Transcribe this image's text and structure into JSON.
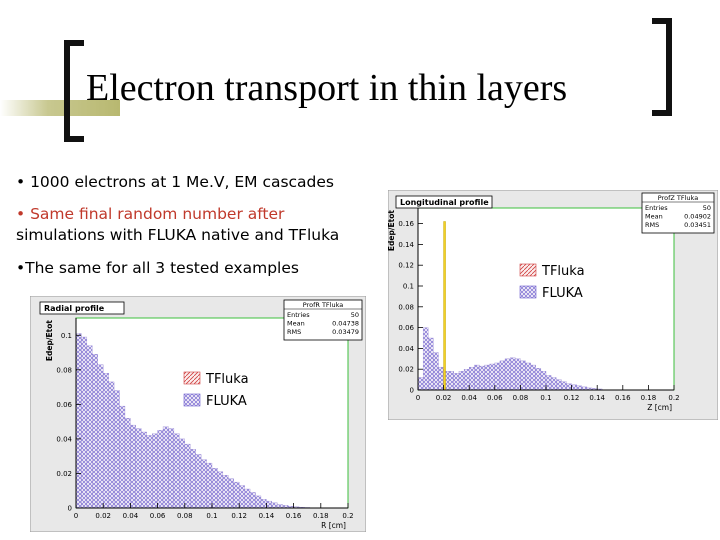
{
  "slide": {
    "title": "Electron transport in thin layers",
    "bullets": [
      "• 1000 electrons at 1 Me.V, EM cascades",
      "• Same final random number after",
      "simulations with FLUKA native and TFluka",
      "•The same for all 3 tested examples"
    ],
    "colors": {
      "accent_bar": "#b8b870",
      "bracket": "#111111",
      "highlight_text": "#c0392b"
    }
  },
  "chart_data": [
    {
      "type": "bar",
      "panel_label": "Radial profile",
      "stats_title": "ProfR TFluka",
      "stats": [
        [
          "Entries",
          "50"
        ],
        [
          "Mean",
          "0.04738"
        ],
        [
          "RMS",
          "0.03479"
        ]
      ],
      "ylabel": "Edep/Etot",
      "xlabel": "R [cm]",
      "xlim": [
        0,
        0.2
      ],
      "ylim": [
        0,
        0.11
      ],
      "xticks": [
        "0",
        "0.02",
        "0.04",
        "0.06",
        "0.08",
        "0.1",
        "0.12",
        "0.14",
        "0.16",
        "0.18",
        "0.2"
      ],
      "yticks": [
        [
          "0",
          "0"
        ],
        [
          "0.02",
          "0.02"
        ],
        [
          "0.04",
          "0.04"
        ],
        [
          "0.06",
          "0.06"
        ],
        [
          "0.08",
          "0.08"
        ],
        [
          "0.1",
          "0.1"
        ]
      ],
      "legend": [
        "TFluka",
        "FLUKA"
      ],
      "bin_width": 0.004,
      "values": [
        0.101,
        0.099,
        0.094,
        0.089,
        0.083,
        0.078,
        0.073,
        0.068,
        0.059,
        0.052,
        0.048,
        0.046,
        0.044,
        0.042,
        0.043,
        0.045,
        0.047,
        0.046,
        0.043,
        0.04,
        0.037,
        0.034,
        0.031,
        0.028,
        0.026,
        0.023,
        0.021,
        0.019,
        0.017,
        0.015,
        0.013,
        0.011,
        0.009,
        0.007,
        0.005,
        0.004,
        0.003,
        0.002,
        0.0015,
        0.001,
        0.0007,
        0.0005,
        0.0003,
        0.0002,
        0.0001,
        0.0001,
        0,
        0,
        0,
        0
      ]
    },
    {
      "type": "bar",
      "panel_label": "Longitudinal profile",
      "stats_title": "ProfZ TFluka",
      "stats": [
        [
          "Entries",
          "50"
        ],
        [
          "Mean",
          "0.04902"
        ],
        [
          "RMS",
          "0.03451"
        ]
      ],
      "ylabel": "Edep/Etot",
      "xlabel": "Z [cm]",
      "xlim": [
        0,
        0.2
      ],
      "ylim": [
        0,
        0.175
      ],
      "xticks": [
        "0",
        "0.02",
        "0.04",
        "0.06",
        "0.08",
        "0.1",
        "0.12",
        "0.14",
        "0.16",
        "0.18",
        "0.2"
      ],
      "yticks": [
        [
          "0",
          "0"
        ],
        [
          "0.02",
          "0.02"
        ],
        [
          "0.04",
          "0.04"
        ],
        [
          "0.06",
          "0.06"
        ],
        [
          "0.08",
          "0.08"
        ],
        [
          "0.1",
          "0.1"
        ],
        [
          "0.12",
          "0.12"
        ],
        [
          "0.14",
          "0.14"
        ],
        [
          "0.16",
          "0.16"
        ]
      ],
      "legend": [
        "TFluka",
        "FLUKA"
      ],
      "bin_width": 0.004,
      "values": [
        0.012,
        0.06,
        0.05,
        0.036,
        0.022,
        0.018,
        0.018,
        0.016,
        0.018,
        0.02,
        0.022,
        0.024,
        0.023,
        0.024,
        0.025,
        0.026,
        0.028,
        0.03,
        0.031,
        0.03,
        0.028,
        0.026,
        0.024,
        0.021,
        0.018,
        0.014,
        0.012,
        0.01,
        0.008,
        0.006,
        0.005,
        0.004,
        0.003,
        0.002,
        0.0015,
        0.001,
        0,
        0,
        0,
        0,
        0,
        0,
        0,
        0,
        0,
        0,
        0,
        0,
        0,
        0
      ],
      "spike_value": 0.162
    }
  ]
}
